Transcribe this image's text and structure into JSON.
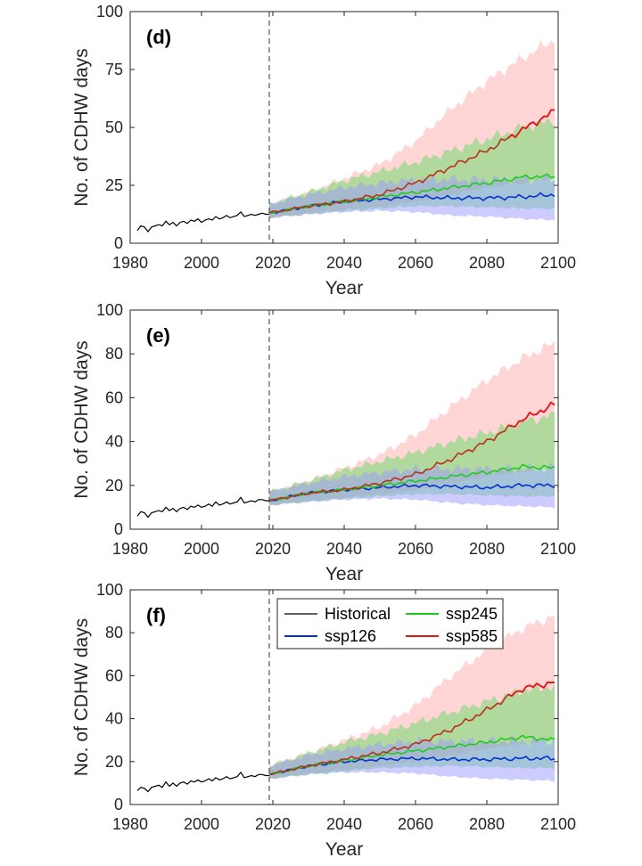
{
  "chart_data": [
    {
      "type": "line",
      "panel_label": "(d)",
      "xlabel": "Year",
      "ylabel": "No. of CDHW days",
      "xlim": [
        1980,
        2100
      ],
      "ylim": [
        0,
        100
      ],
      "xticks": [
        1980,
        2000,
        2020,
        2040,
        2060,
        2080,
        2100
      ],
      "yticks": [
        0,
        25,
        50,
        75,
        100
      ],
      "divider_year": 2019,
      "historical": {
        "name": "Historical",
        "x": [
          1982,
          1983,
          1984,
          1985,
          1986,
          1987,
          1988,
          1989,
          1990,
          1991,
          1992,
          1993,
          1994,
          1995,
          1996,
          1997,
          1998,
          1999,
          2000,
          2001,
          2002,
          2003,
          2004,
          2005,
          2006,
          2007,
          2008,
          2009,
          2010,
          2011,
          2012,
          2013,
          2014,
          2015,
          2016,
          2017,
          2018,
          2019
        ],
        "values": [
          5.5,
          7.5,
          7,
          5,
          7,
          7.5,
          8,
          7.5,
          9.5,
          8,
          9,
          7.5,
          9,
          9.5,
          8.5,
          10,
          9.5,
          10.5,
          9,
          10,
          10.5,
          10,
          11.5,
          10.5,
          11,
          12,
          11,
          11.5,
          12,
          13.5,
          11.5,
          12,
          12.5,
          12,
          12.5,
          13,
          12.5,
          12.5
        ]
      },
      "series": [
        {
          "name": "ssp126",
          "x": [
            2019,
            2030,
            2040,
            2050,
            2060,
            2070,
            2080,
            2090,
            2099
          ],
          "values": [
            13,
            16,
            18,
            19,
            20,
            19.5,
            19.5,
            20,
            21
          ],
          "band_low": [
            11,
            12.5,
            13.5,
            14,
            13.5,
            12,
            11.5,
            10.5,
            10
          ],
          "band_high": [
            17,
            21,
            24,
            26,
            27.5,
            27.5,
            27.5,
            27.5,
            28
          ]
        },
        {
          "name": "ssp245",
          "x": [
            2019,
            2030,
            2040,
            2050,
            2060,
            2070,
            2080,
            2090,
            2099
          ],
          "values": [
            13,
            16,
            18,
            20,
            22,
            24,
            26,
            28.5,
            29
          ],
          "band_low": [
            11,
            12.5,
            14,
            15,
            16,
            16,
            15.5,
            15,
            15
          ],
          "band_high": [
            17,
            22,
            27,
            31,
            35,
            40,
            45,
            50,
            53
          ]
        },
        {
          "name": "ssp585",
          "x": [
            2019,
            2030,
            2040,
            2050,
            2060,
            2070,
            2080,
            2090,
            2099
          ],
          "values": [
            13,
            16,
            18,
            21,
            26,
            33,
            40,
            49,
            57
          ],
          "band_low": [
            11,
            13,
            14.5,
            16,
            18,
            21,
            24,
            26,
            28
          ],
          "band_high": [
            17,
            22,
            28,
            34,
            44,
            58,
            70,
            80,
            88
          ]
        }
      ]
    },
    {
      "type": "line",
      "panel_label": "(e)",
      "xlabel": "Year",
      "ylabel": "No. of CDHW days",
      "xlim": [
        1980,
        2100
      ],
      "ylim": [
        0,
        100
      ],
      "xticks": [
        1980,
        2000,
        2020,
        2040,
        2060,
        2080,
        2100
      ],
      "yticks": [
        0,
        20,
        40,
        60,
        80,
        100
      ],
      "divider_year": 2019,
      "historical": {
        "name": "Historical",
        "x": [
          1982,
          1983,
          1984,
          1985,
          1986,
          1987,
          1988,
          1989,
          1990,
          1991,
          1992,
          1993,
          1994,
          1995,
          1996,
          1997,
          1998,
          1999,
          2000,
          2001,
          2002,
          2003,
          2004,
          2005,
          2006,
          2007,
          2008,
          2009,
          2010,
          2011,
          2012,
          2013,
          2014,
          2015,
          2016,
          2017,
          2018,
          2019
        ],
        "values": [
          6,
          8,
          7.5,
          5.5,
          7.5,
          8,
          8.5,
          8,
          10,
          8.5,
          9.5,
          8,
          9.5,
          10,
          9,
          10.5,
          10,
          11,
          10,
          10.5,
          11.5,
          10.5,
          12.5,
          11,
          11.5,
          12.5,
          11.5,
          12,
          12.5,
          14.5,
          12,
          12.5,
          13,
          12.5,
          13.5,
          13.5,
          13,
          13
        ]
      },
      "series": [
        {
          "name": "ssp126",
          "x": [
            2019,
            2030,
            2040,
            2050,
            2060,
            2070,
            2080,
            2090,
            2099
          ],
          "values": [
            13,
            16.5,
            18,
            19,
            20,
            19.5,
            19,
            20,
            20
          ],
          "band_low": [
            11,
            12.5,
            13.5,
            14,
            13.5,
            12,
            11,
            10.5,
            10
          ],
          "band_high": [
            17,
            21,
            24,
            26,
            27.5,
            27.5,
            27.5,
            27.5,
            28
          ]
        },
        {
          "name": "ssp245",
          "x": [
            2019,
            2030,
            2040,
            2050,
            2060,
            2070,
            2080,
            2090,
            2099
          ],
          "values": [
            13,
            16.5,
            18,
            20,
            22,
            24,
            26,
            28.5,
            28
          ],
          "band_low": [
            11,
            12.5,
            14,
            15,
            16,
            16,
            15.5,
            15,
            15
          ],
          "band_high": [
            17,
            22,
            27,
            31,
            35,
            40,
            44,
            49,
            52
          ]
        },
        {
          "name": "ssp585",
          "x": [
            2019,
            2030,
            2040,
            2050,
            2060,
            2070,
            2080,
            2090,
            2099
          ],
          "values": [
            13,
            16.5,
            18,
            21,
            25,
            32,
            40,
            50,
            57
          ],
          "band_low": [
            11,
            13,
            14.5,
            16,
            18,
            21,
            24,
            26,
            28
          ],
          "band_high": [
            17,
            22,
            28,
            34,
            43,
            56,
            68,
            78,
            85
          ]
        }
      ]
    },
    {
      "type": "line",
      "panel_label": "(f)",
      "xlabel": "Year",
      "ylabel": "No. of CDHW days",
      "xlim": [
        1980,
        2100
      ],
      "ylim": [
        0,
        100
      ],
      "xticks": [
        1980,
        2000,
        2020,
        2040,
        2060,
        2080,
        2100
      ],
      "yticks": [
        0,
        20,
        40,
        60,
        80,
        100
      ],
      "divider_year": 2019,
      "legend": {
        "placement": "top-center",
        "entries": [
          "Historical",
          "ssp126",
          "ssp245",
          "ssp585"
        ]
      },
      "historical": {
        "name": "Historical",
        "x": [
          1982,
          1983,
          1984,
          1985,
          1986,
          1987,
          1988,
          1989,
          1990,
          1991,
          1992,
          1993,
          1994,
          1995,
          1996,
          1997,
          1998,
          1999,
          2000,
          2001,
          2002,
          2003,
          2004,
          2005,
          2006,
          2007,
          2008,
          2009,
          2010,
          2011,
          2012,
          2013,
          2014,
          2015,
          2016,
          2017,
          2018,
          2019
        ],
        "values": [
          6.5,
          8,
          7.5,
          6,
          8,
          8.5,
          9,
          8,
          10.5,
          8.5,
          10,
          8.5,
          10,
          10.5,
          9.5,
          11,
          10.5,
          11.5,
          10.5,
          11,
          12,
          11,
          12.5,
          11.5,
          12,
          13,
          12,
          12.5,
          13,
          15,
          12.5,
          13,
          13.5,
          13,
          14,
          14,
          13.5,
          13.5
        ]
      },
      "series": [
        {
          "name": "ssp126",
          "x": [
            2019,
            2030,
            2040,
            2050,
            2060,
            2070,
            2080,
            2090,
            2099
          ],
          "values": [
            14,
            18,
            20,
            21,
            21.5,
            21,
            21,
            21.5,
            21.5
          ],
          "band_low": [
            12,
            14,
            15,
            15,
            14.5,
            13,
            12,
            11.5,
            11
          ],
          "band_high": [
            18,
            23,
            26,
            28,
            29.5,
            29.5,
            29.5,
            29.5,
            30
          ]
        },
        {
          "name": "ssp245",
          "x": [
            2019,
            2030,
            2040,
            2050,
            2060,
            2070,
            2080,
            2090,
            2099
          ],
          "values": [
            14,
            18,
            20.5,
            23,
            25,
            27,
            29,
            31.5,
            30
          ],
          "band_low": [
            12,
            14,
            15.5,
            17,
            17.5,
            18,
            17.5,
            17,
            17
          ],
          "band_high": [
            18,
            24,
            29,
            33,
            38,
            43,
            48,
            53,
            55
          ]
        },
        {
          "name": "ssp585",
          "x": [
            2019,
            2030,
            2040,
            2050,
            2060,
            2070,
            2080,
            2090,
            2099
          ],
          "values": [
            14,
            18,
            21,
            24,
            28,
            35,
            44,
            54,
            57
          ],
          "band_low": [
            12,
            14.5,
            16,
            18,
            20,
            23,
            26,
            28,
            30
          ],
          "band_high": [
            18,
            24,
            30,
            36,
            46,
            60,
            72,
            82,
            88
          ]
        }
      ]
    }
  ],
  "colors": {
    "historical": "#000000",
    "ssp126": "#0033cc",
    "ssp245": "#1ecc1e",
    "ssp585": "#e61414",
    "ssp126_band": "#9999ff",
    "ssp245_band": "#66dd66",
    "ssp585_band": "#ffb3b3",
    "axis": "#262626",
    "divider": "#333333"
  }
}
